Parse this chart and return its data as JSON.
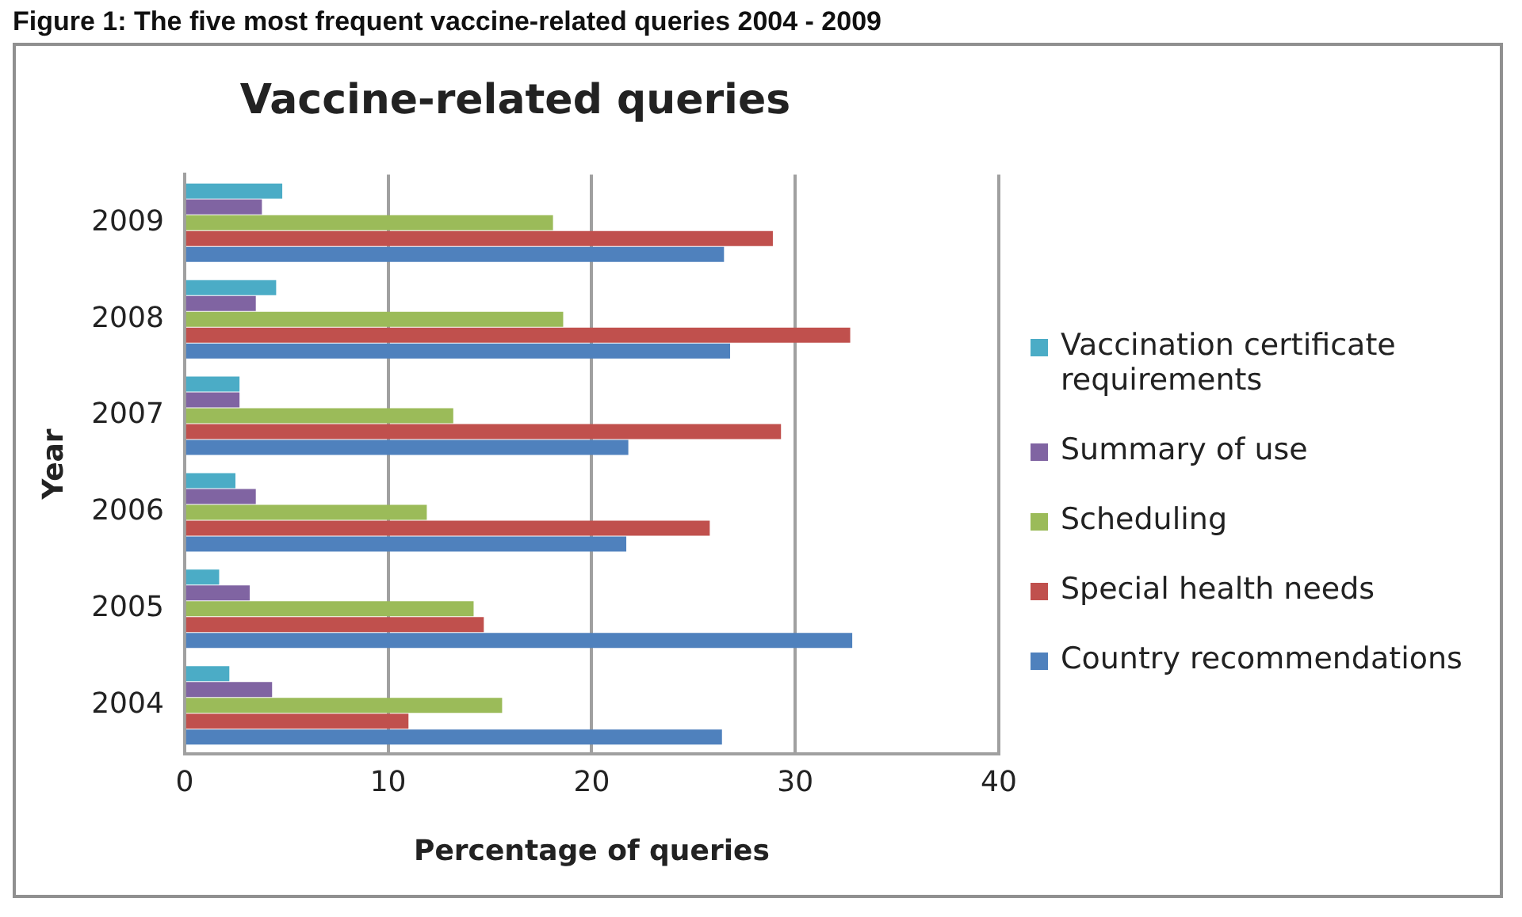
{
  "chart_data": {
    "type": "bar",
    "orientation": "horizontal",
    "title": "Vaccine-related queries",
    "xlabel": "Percentage of queries",
    "ylabel": "Year",
    "annotations": [
      "Figure 1: The five most frequent vaccine-related queries 2004 - 2009"
    ],
    "categories": [
      "2009",
      "2008",
      "2007",
      "2006",
      "2005",
      "2004"
    ],
    "series": [
      {
        "name": "Vaccination certificate requirements",
        "color": "#4bacc6",
        "values": [
          4.8,
          4.5,
          2.7,
          2.5,
          1.7,
          2.2
        ]
      },
      {
        "name": "Summary of use",
        "color": "#8064a2",
        "values": [
          3.8,
          3.5,
          2.7,
          3.5,
          3.2,
          4.3
        ]
      },
      {
        "name": "Scheduling",
        "color": "#9bbb59",
        "values": [
          18.1,
          18.6,
          13.2,
          11.9,
          14.2,
          15.6
        ]
      },
      {
        "name": "Special health needs",
        "color": "#c0504d",
        "values": [
          28.9,
          32.7,
          29.3,
          25.8,
          14.7,
          11
        ]
      },
      {
        "name": "Country recommendations",
        "color": "#4f81bd",
        "values": [
          26.5,
          26.8,
          21.8,
          21.7,
          32.8,
          26.4
        ]
      }
    ],
    "xlim": [
      0,
      40
    ],
    "xticks": [
      0,
      10,
      20,
      30,
      40
    ],
    "grid": "x",
    "legend": "right"
  }
}
